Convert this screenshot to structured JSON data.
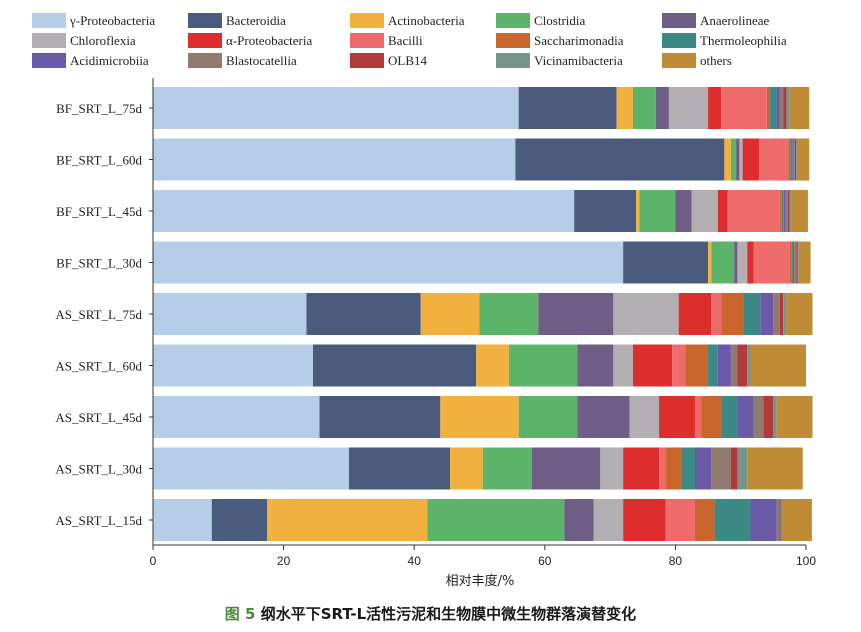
{
  "chart_data": {
    "type": "bar",
    "orientation": "horizontal",
    "stacked": true,
    "xlabel": "相对丰度/%",
    "xlim": [
      0,
      100
    ],
    "xticks": [
      0,
      20,
      40,
      60,
      80,
      100
    ],
    "legend_position": "top",
    "categories": [
      "BF_SRT_L_75d",
      "BF_SRT_L_60d",
      "BF_SRT_L_45d",
      "BF_SRT_L_30d",
      "AS_SRT_L_75d",
      "AS_SRT_L_60d",
      "AS_SRT_L_45d",
      "AS_SRT_L_30d",
      "AS_SRT_L_15d"
    ],
    "series": [
      {
        "name": "γ-Proteobacteria",
        "color": "#b6cde8",
        "values": [
          56,
          55.5,
          64.5,
          72,
          23.5,
          24.5,
          25.5,
          30,
          9
        ]
      },
      {
        "name": "Bacteroidia",
        "color": "#4a5b7e",
        "values": [
          15,
          32,
          9.5,
          13,
          17.5,
          25,
          18.5,
          15.5,
          8.5
        ]
      },
      {
        "name": "Actinobacteria",
        "color": "#f2b13f",
        "values": [
          2.5,
          1,
          0.5,
          0.5,
          9,
          5,
          12,
          5,
          24.5
        ]
      },
      {
        "name": "Clostridia",
        "color": "#5cb46a",
        "values": [
          3.5,
          0.8,
          5.5,
          3.5,
          9,
          10.5,
          9,
          7.5,
          21
        ]
      },
      {
        "name": "Anaerolineae",
        "color": "#6e5d85",
        "values": [
          2,
          0.5,
          2.5,
          0.5,
          11.5,
          5.5,
          8,
          10.5,
          4.5
        ]
      },
      {
        "name": "Chloroflexia",
        "color": "#b3aeb1",
        "values": [
          6,
          0.5,
          4,
          1.5,
          10,
          3,
          4.5,
          3.5,
          4.5
        ]
      },
      {
        "name": "α-Proteobacteria",
        "color": "#dc2e2c",
        "values": [
          2,
          2.5,
          1.5,
          1,
          5,
          6,
          5.5,
          5.5,
          6.5
        ]
      },
      {
        "name": "Bacilli",
        "color": "#ee6b6b",
        "values": [
          7,
          4.5,
          8,
          5.5,
          1.5,
          2,
          1,
          1,
          4.5
        ]
      },
      {
        "name": "Saccharimonadia",
        "color": "#c8662e",
        "values": [
          0.5,
          0.3,
          0.3,
          0.3,
          3.5,
          3.5,
          3,
          2.5,
          3
        ]
      },
      {
        "name": "Thermoleophilia",
        "color": "#3b8a86",
        "values": [
          1,
          0.3,
          0.3,
          0.2,
          2.5,
          1.5,
          2.5,
          2,
          5.5
        ]
      },
      {
        "name": "Acidimicrobiia",
        "color": "#6a5aa8",
        "values": [
          0.5,
          0.2,
          0.3,
          0.2,
          2,
          2,
          2.5,
          2.5,
          4
        ]
      },
      {
        "name": "Blastocatellia",
        "color": "#917a6e",
        "values": [
          0.5,
          0.2,
          0.3,
          0.3,
          1,
          1,
          1.5,
          3,
          0.4
        ]
      },
      {
        "name": "OLB14",
        "color": "#b33a3a",
        "values": [
          0.5,
          0.2,
          0.3,
          0.2,
          0.5,
          1.5,
          1.5,
          1,
          0.2
        ]
      },
      {
        "name": "Vicinamibacteria",
        "color": "#78958c",
        "values": [
          0.5,
          0.2,
          0.3,
          0.2,
          0.5,
          0.5,
          0.5,
          1.5,
          0.3
        ]
      },
      {
        "name": "others",
        "color": "#bf8c35",
        "values": [
          3,
          1.8,
          2.5,
          1.8,
          4,
          8.5,
          5.5,
          8.5,
          4.5
        ]
      }
    ]
  },
  "caption": {
    "fig_label": "图 5",
    "text": " 纲水平下SRT-L活性污泥和生物膜中微生物群落演替变化"
  }
}
